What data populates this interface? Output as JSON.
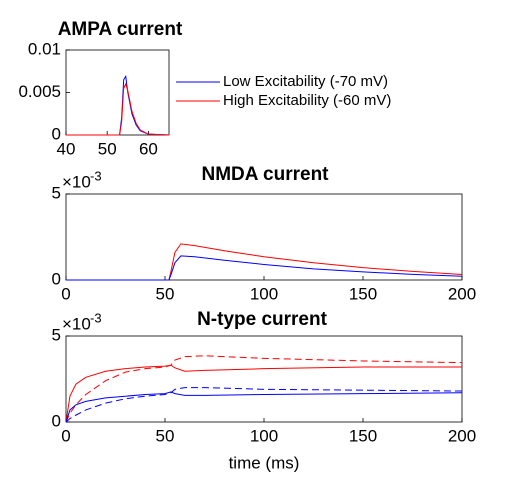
{
  "chart_data": [
    {
      "type": "line",
      "title": "AMPA current",
      "x": [
        40,
        53,
        53.5,
        54,
        54.5,
        55,
        56,
        57,
        58,
        60,
        65
      ],
      "series": [
        {
          "name": "Low Excitability  (-70 mV)",
          "color": "#0000ff",
          "values": [
            0,
            0,
            0.002,
            0.0065,
            0.0069,
            0.005,
            0.0025,
            0.0012,
            0.0005,
            0.0001,
            0
          ]
        },
        {
          "name": "High Excitability (-60 mV)",
          "color": "#ff0000",
          "values": [
            0,
            0,
            0.0015,
            0.0055,
            0.006,
            0.0052,
            0.0028,
            0.0014,
            0.0006,
            0.0001,
            0
          ]
        }
      ],
      "xlim": [
        40,
        65
      ],
      "xticks": [
        40,
        50,
        60
      ],
      "ylim": [
        0,
        0.01
      ],
      "yticks": [
        0,
        0.005,
        0.01
      ],
      "legend": "outside-right"
    },
    {
      "type": "line",
      "title": "NMDA current",
      "y_multiplier": "×10",
      "y_multiplier_exp": "-3",
      "x": [
        0,
        52,
        53,
        55,
        58,
        65,
        80,
        100,
        125,
        150,
        175,
        200
      ],
      "series": [
        {
          "color": "#ff0000",
          "values": [
            0,
            0,
            0.5,
            1.6,
            2.1,
            2.0,
            1.7,
            1.35,
            1.0,
            0.72,
            0.5,
            0.32
          ]
        },
        {
          "color": "#0000ff",
          "values": [
            0,
            0,
            0.3,
            1.0,
            1.4,
            1.35,
            1.15,
            0.9,
            0.65,
            0.47,
            0.33,
            0.22
          ]
        }
      ],
      "xlim": [
        0,
        200
      ],
      "xticks": [
        0,
        50,
        100,
        150,
        200
      ],
      "ylim": [
        0,
        5
      ],
      "yticks": [
        0,
        5
      ]
    },
    {
      "type": "line",
      "title": "N-type current",
      "y_multiplier": "×10",
      "y_multiplier_exp": "-3",
      "xlabel": "time (ms)",
      "x": [
        0,
        2,
        5,
        10,
        20,
        30,
        40,
        50,
        53,
        55,
        60,
        70,
        100,
        150,
        200
      ],
      "series": [
        {
          "color": "#ff0000",
          "dash": false,
          "values": [
            0,
            1.5,
            2.2,
            2.6,
            2.95,
            3.1,
            3.2,
            3.25,
            3.3,
            3.15,
            2.95,
            3.0,
            3.1,
            3.2,
            3.2
          ]
        },
        {
          "color": "#ff0000",
          "dash": true,
          "values": [
            0,
            0.5,
            1.0,
            1.6,
            2.4,
            2.9,
            3.1,
            3.2,
            3.3,
            3.6,
            3.8,
            3.85,
            3.7,
            3.55,
            3.45
          ]
        },
        {
          "color": "#0000ff",
          "dash": false,
          "values": [
            0,
            0.7,
            1.0,
            1.2,
            1.4,
            1.5,
            1.6,
            1.65,
            1.75,
            1.65,
            1.55,
            1.55,
            1.6,
            1.65,
            1.7
          ]
        },
        {
          "color": "#0000ff",
          "dash": true,
          "values": [
            0,
            0.2,
            0.4,
            0.7,
            1.1,
            1.35,
            1.5,
            1.6,
            1.7,
            1.9,
            2.0,
            2.0,
            1.9,
            1.85,
            1.8
          ]
        }
      ],
      "xlim": [
        0,
        200
      ],
      "xticks": [
        0,
        50,
        100,
        150,
        200
      ],
      "ylim": [
        0,
        5
      ],
      "yticks": [
        0,
        5
      ]
    }
  ]
}
